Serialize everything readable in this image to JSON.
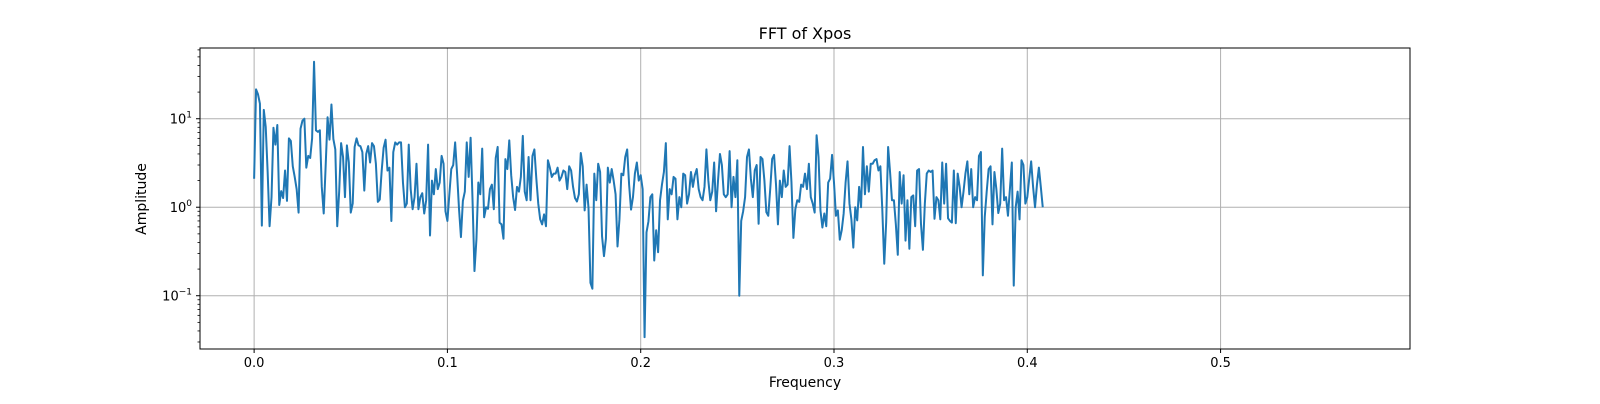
{
  "chart_data": {
    "type": "line",
    "title": "FFT of Xpos",
    "xlabel": "Frequency",
    "ylabel": "Amplitude",
    "yscale": "log",
    "xlim": [
      -0.028,
      0.598
    ],
    "ylim": [
      0.025,
      63
    ],
    "grid": true,
    "line_color": "#1f77b4",
    "x_ticks": [
      {
        "value": 0.0,
        "label": "0.0"
      },
      {
        "value": 0.1,
        "label": "0.1"
      },
      {
        "value": 0.2,
        "label": "0.2"
      },
      {
        "value": 0.3,
        "label": "0.3"
      },
      {
        "value": 0.4,
        "label": "0.4"
      },
      {
        "value": 0.5,
        "label": "0.5"
      }
    ],
    "y_ticks": [
      {
        "value": 0.1,
        "base": "10",
        "exp": "−1"
      },
      {
        "value": 1,
        "base": "10",
        "exp": "0"
      },
      {
        "value": 10,
        "base": "10",
        "exp": "1"
      }
    ],
    "series": [
      {
        "x_start": 0.0,
        "x_step": 0.001,
        "values": [
          2.1,
          21.5,
          18.9,
          14.8,
          0.62,
          12.6,
          8.1,
          2.5,
          0.61,
          1.3,
          7.9,
          5.1,
          8.5,
          1.06,
          1.52,
          1.27,
          2.6,
          1.18,
          6.0,
          5.6,
          2.9,
          2.2,
          1.6,
          0.87,
          7.7,
          9.5,
          10.0,
          2.8,
          3.8,
          3.6,
          6.0,
          44.0,
          7.4,
          7.1,
          7.4,
          1.7,
          0.85,
          2.9,
          10.4,
          5.8,
          14.5,
          5.9,
          4.5,
          0.61,
          1.5,
          5.3,
          3.7,
          1.3,
          5.0,
          3.2,
          0.87,
          1.1,
          4.8,
          6.0,
          5.0,
          4.9,
          4.2,
          1.54,
          4.0,
          4.9,
          3.2,
          5.3,
          4.9,
          3.1,
          1.15,
          1.22,
          2.6,
          4.7,
          5.8,
          2.6,
          2.8,
          0.7,
          4.2,
          5.4,
          5.1,
          5.4,
          5.4,
          1.9,
          1.0,
          1.1,
          5.1,
          1.6,
          0.95,
          1.3,
          3.1,
          0.95,
          1.3,
          1.44,
          0.85,
          1.2,
          5.1,
          0.48,
          2.0,
          1.4,
          2.7,
          1.6,
          1.9,
          3.8,
          3.1,
          0.9,
          0.7,
          1.4,
          2.7,
          3.0,
          5.4,
          2.4,
          0.96,
          0.46,
          1.18,
          1.5,
          5.4,
          2.2,
          6.1,
          1.2,
          0.19,
          0.43,
          1.9,
          1.4,
          4.6,
          0.77,
          1.0,
          0.96,
          1.6,
          1.8,
          0.95,
          3.6,
          4.8,
          0.67,
          0.64,
          0.44,
          3.5,
          2.7,
          5.7,
          2.3,
          1.3,
          0.93,
          1.7,
          1.5,
          2.2,
          6.4,
          1.5,
          1.2,
          3.7,
          1.2,
          3.8,
          4.5,
          2.1,
          1.1,
          0.73,
          0.64,
          0.83,
          0.61,
          3.4,
          2.8,
          2.2,
          2.4,
          2.4,
          2.8,
          2.0,
          2.2,
          2.6,
          2.5,
          1.6,
          2.9,
          2.6,
          1.7,
          1.27,
          1.16,
          1.4,
          4.1,
          2.9,
          0.92,
          1.8,
          0.98,
          0.14,
          0.12,
          2.4,
          1.2,
          3.1,
          2.5,
          0.47,
          0.28,
          0.44,
          2.8,
          1.9,
          2.7,
          2.0,
          1.4,
          0.36,
          0.73,
          2.4,
          2.3,
          3.7,
          4.5,
          1.8,
          0.94,
          1.3,
          2.4,
          3.2,
          2.0,
          2.3,
          1.6,
          0.034,
          0.52,
          0.69,
          1.3,
          1.4,
          0.25,
          0.55,
          0.31,
          1.2,
          1.8,
          2.5,
          5.3,
          0.73,
          1.6,
          1.4,
          2.2,
          2.1,
          0.73,
          1.3,
          1.0,
          2.4,
          2.3,
          1.1,
          1.4,
          2.5,
          1.7,
          2.3,
          2.7,
          1.6,
          1.3,
          1.2,
          1.7,
          4.5,
          2.0,
          1.2,
          1.5,
          3.2,
          0.9,
          2.0,
          4.0,
          3.0,
          1.4,
          1.3,
          1.4,
          4.3,
          1.0,
          2.2,
          1.3,
          3.4,
          0.1,
          0.7,
          0.9,
          1.3,
          3.7,
          4.5,
          2.1,
          1.3,
          2.6,
          3.0,
          0.65,
          3.7,
          3.5,
          2.0,
          0.88,
          0.8,
          1.6,
          3.5,
          3.9,
          1.8,
          0.64,
          2.0,
          1.3,
          2.6,
          1.7,
          1.8,
          4.9,
          1.9,
          0.45,
          0.95,
          1.2,
          1.15,
          1.8,
          1.7,
          2.4,
          1.6,
          3.1,
          1.3,
          1.1,
          0.87,
          6.5,
          3.7,
          0.92,
          0.59,
          0.85,
          0.61,
          1.9,
          2.1,
          3.9,
          1.9,
          0.8,
          0.92,
          0.43,
          0.55,
          0.85,
          1.9,
          3.3,
          1.1,
          0.73,
          0.35,
          1.0,
          0.71,
          1.7,
          1.0,
          4.8,
          1.4,
          2.9,
          1.5,
          3.1,
          3.1,
          3.4,
          3.5,
          2.6,
          2.9,
          0.93,
          0.23,
          0.68,
          4.8,
          2.5,
          1.2,
          1.2,
          0.64,
          0.29,
          2.5,
          1.1,
          2.3,
          0.42,
          1.2,
          0.34,
          1.3,
          1.36,
          0.61,
          2.6,
          2.7,
          0.65,
          0.33,
          1.1,
          2.4,
          2.6,
          2.5,
          2.6,
          0.74,
          1.3,
          1.2,
          0.73,
          3.2,
          1.1,
          3.1,
          0.75,
          0.7,
          0.67,
          2.6,
          0.66,
          2.4,
          1.7,
          1.0,
          1.5,
          2.4,
          3.3,
          1.4,
          2.7,
          1.0,
          1.3,
          1.2,
          3.8,
          4.2,
          0.17,
          0.78,
          1.5,
          2.7,
          2.9,
          0.64,
          2.5,
          1.6,
          0.86,
          1.1,
          4.6,
          1.2,
          1.3,
          0.8,
          1.6,
          3.2,
          0.13,
          1.0,
          1.5,
          0.73,
          3.4,
          3.0,
          1.1,
          1.3,
          2.1,
          3.3,
          1.7,
          1.0,
          1.8,
          2.8,
          1.7,
          1.0
        ]
      }
    ]
  }
}
